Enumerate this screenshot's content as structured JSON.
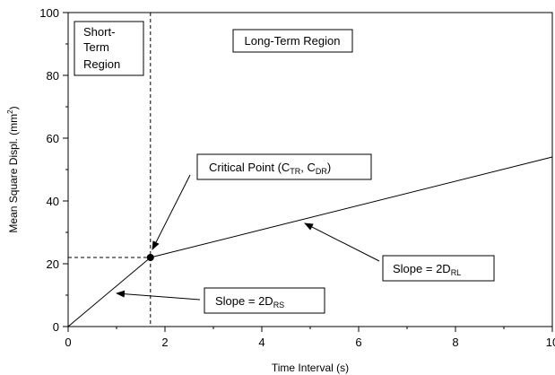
{
  "chart_data": {
    "type": "line",
    "title": "",
    "xlabel": "Time Interval (s)",
    "ylabel_main": "Mean Square Displ. (mm",
    "ylabel_sup": "2",
    "ylabel_close": ")",
    "xlim": [
      0,
      10
    ],
    "ylim": [
      0,
      100
    ],
    "xticks": [
      0,
      2,
      4,
      6,
      8,
      10
    ],
    "yticks": [
      0,
      20,
      40,
      60,
      80,
      100
    ],
    "xtick_labels": [
      "0",
      "2",
      "4",
      "6",
      "8",
      "10"
    ],
    "ytick_labels": [
      "0",
      "20",
      "40",
      "60",
      "80",
      "100"
    ],
    "grid": false,
    "series": [
      {
        "x": [
          0,
          1.7
        ],
        "y": [
          0,
          22
        ]
      },
      {
        "x": [
          1.7,
          10
        ],
        "y": [
          22,
          54
        ]
      }
    ],
    "critical_point": {
      "x": 1.7,
      "y": 22
    },
    "regions": {
      "short_term_line1": "Short-",
      "short_term_line2": "Term",
      "short_term_line3": "Region",
      "long_term": "Long-Term Region"
    },
    "annotations": {
      "critical_main": "Critical Point (C",
      "critical_sub1": "TR",
      "critical_mid": ", C",
      "critical_sub2": "DR",
      "critical_close": ")",
      "slope_rl_main": "Slope = 2D",
      "slope_rl_sub": "RL",
      "slope_rs_main": "Slope = 2D",
      "slope_rs_sub": "RS"
    }
  }
}
